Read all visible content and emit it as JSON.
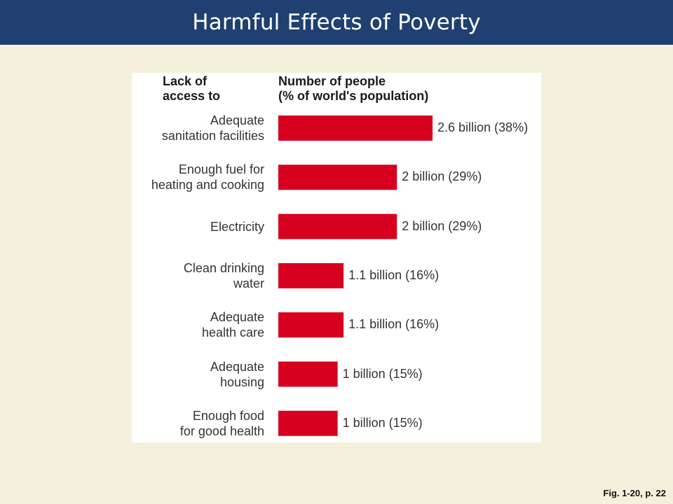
{
  "slide": {
    "title": "Harmful Effects of Poverty",
    "caption": "Fig. 1-20, p. 22"
  },
  "chart_data": {
    "type": "bar",
    "orientation": "horizontal",
    "category_header": "Lack of\naccess to",
    "value_header": "Number of people\n(% of world's population)",
    "categories": [
      "Adequate\nsanitation facilities",
      "Enough fuel for\nheating and cooking",
      "Electricity",
      "Clean drinking\nwater",
      "Adequate\nhealth care",
      "Adequate\nhousing",
      "Enough food\nfor good health"
    ],
    "values": [
      2.6,
      2,
      2,
      1.1,
      1.1,
      1,
      1
    ],
    "percents": [
      38,
      29,
      29,
      16,
      16,
      15,
      15
    ],
    "data_labels": [
      "2.6 billion (38%)",
      "2 billion (29%)",
      "2 billion (29%)",
      "1.1 billion (16%)",
      "1.1 billion (16%)",
      "1 billion (15%)",
      "1 billion (15%)"
    ],
    "unit": "billion",
    "bar_color": "#d7001e",
    "grid": false,
    "legend": "none"
  }
}
